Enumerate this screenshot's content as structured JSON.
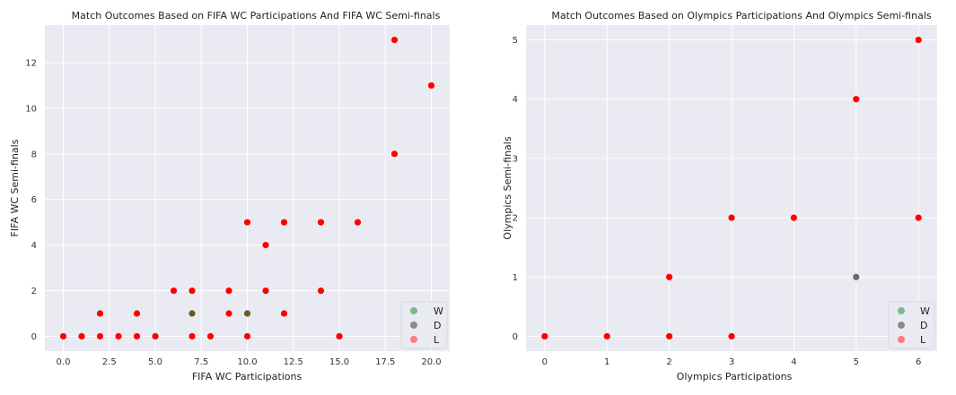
{
  "colors": {
    "W": "#55a868",
    "D": "#6b6b6b",
    "L": "#ff5a5a",
    "overlap": "#ff0000",
    "mixed": "#6b5a1e"
  },
  "chart_data": [
    {
      "type": "scatter",
      "title": "Match Outcomes Based on FIFA WC Participations And FIFA WC Semi-finals",
      "xlabel": "FIFA WC Participations",
      "ylabel": "FIFA WC Semi-finals",
      "xlim": [
        -1,
        21
      ],
      "ylim": [
        -0.65,
        13.65
      ],
      "xticks": [
        0,
        2.5,
        5,
        7.5,
        10,
        12.5,
        15,
        17.5,
        20
      ],
      "xtick_labels": [
        "0.0",
        "2.5",
        "5.0",
        "7.5",
        "10.0",
        "12.5",
        "15.0",
        "17.5",
        "20.0"
      ],
      "yticks": [
        0,
        2,
        4,
        6,
        8,
        10,
        12
      ],
      "ytick_labels": [
        "0",
        "2",
        "4",
        "6",
        "8",
        "10",
        "12"
      ],
      "grid": true,
      "legend": {
        "position": "bottom-right",
        "entries": [
          "W",
          "D",
          "L"
        ]
      },
      "points": [
        {
          "x": 0,
          "y": 0,
          "c": "overlap"
        },
        {
          "x": 1,
          "y": 0,
          "c": "overlap"
        },
        {
          "x": 2,
          "y": 0,
          "c": "overlap"
        },
        {
          "x": 2,
          "y": 1,
          "c": "overlap"
        },
        {
          "x": 3,
          "y": 0,
          "c": "overlap"
        },
        {
          "x": 4,
          "y": 0,
          "c": "overlap"
        },
        {
          "x": 4,
          "y": 1,
          "c": "overlap"
        },
        {
          "x": 5,
          "y": 0,
          "c": "overlap"
        },
        {
          "x": 6,
          "y": 2,
          "c": "overlap"
        },
        {
          "x": 7,
          "y": 0,
          "c": "overlap"
        },
        {
          "x": 7,
          "y": 1,
          "c": "mixed"
        },
        {
          "x": 7,
          "y": 2,
          "c": "overlap"
        },
        {
          "x": 8,
          "y": 0,
          "c": "overlap"
        },
        {
          "x": 9,
          "y": 1,
          "c": "overlap"
        },
        {
          "x": 9,
          "y": 2,
          "c": "overlap"
        },
        {
          "x": 10,
          "y": 0,
          "c": "overlap"
        },
        {
          "x": 10,
          "y": 1,
          "c": "mixed"
        },
        {
          "x": 10,
          "y": 5,
          "c": "overlap"
        },
        {
          "x": 11,
          "y": 2,
          "c": "overlap"
        },
        {
          "x": 11,
          "y": 4,
          "c": "overlap"
        },
        {
          "x": 12,
          "y": 1,
          "c": "overlap"
        },
        {
          "x": 12,
          "y": 5,
          "c": "overlap"
        },
        {
          "x": 14,
          "y": 2,
          "c": "overlap"
        },
        {
          "x": 14,
          "y": 5,
          "c": "overlap"
        },
        {
          "x": 15,
          "y": 0,
          "c": "overlap"
        },
        {
          "x": 16,
          "y": 5,
          "c": "overlap"
        },
        {
          "x": 18,
          "y": 8,
          "c": "overlap"
        },
        {
          "x": 18,
          "y": 13,
          "c": "overlap"
        },
        {
          "x": 20,
          "y": 11,
          "c": "overlap"
        }
      ]
    },
    {
      "type": "scatter",
      "title": "Match Outcomes Based on Olympics Participations And Olympics Semi-finals",
      "xlabel": "Olympics Participations",
      "ylabel": "Olympics Semi-finals",
      "xlim": [
        -0.3,
        6.3
      ],
      "ylim": [
        -0.25,
        5.25
      ],
      "xticks": [
        0,
        1,
        2,
        3,
        4,
        5,
        6
      ],
      "xtick_labels": [
        "0",
        "1",
        "2",
        "3",
        "4",
        "5",
        "6"
      ],
      "yticks": [
        0,
        1,
        2,
        3,
        4,
        5
      ],
      "ytick_labels": [
        "0",
        "1",
        "2",
        "3",
        "4",
        "5"
      ],
      "grid": true,
      "legend": {
        "position": "bottom-right",
        "entries": [
          "W",
          "D",
          "L"
        ]
      },
      "points": [
        {
          "x": 0,
          "y": 0,
          "c": "overlap"
        },
        {
          "x": 1,
          "y": 0,
          "c": "overlap"
        },
        {
          "x": 2,
          "y": 0,
          "c": "overlap"
        },
        {
          "x": 2,
          "y": 1,
          "c": "overlap"
        },
        {
          "x": 3,
          "y": 0,
          "c": "overlap"
        },
        {
          "x": 3,
          "y": 2,
          "c": "overlap"
        },
        {
          "x": 4,
          "y": 2,
          "c": "overlap"
        },
        {
          "x": 5,
          "y": 1,
          "c": "D"
        },
        {
          "x": 5,
          "y": 4,
          "c": "overlap"
        },
        {
          "x": 6,
          "y": 2,
          "c": "overlap"
        },
        {
          "x": 6,
          "y": 5,
          "c": "overlap"
        }
      ]
    }
  ]
}
